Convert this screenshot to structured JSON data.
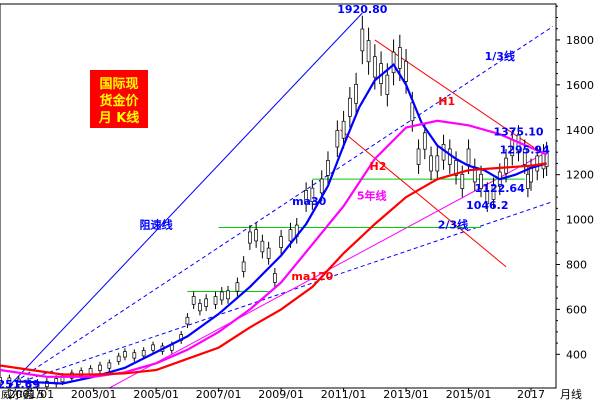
{
  "chart_data": {
    "type": "line",
    "title_box": {
      "line1": "国际现",
      "line2": "货金价",
      "line3": "月 K线",
      "bg_color": "#ff0000",
      "text_color": "#ffff00"
    },
    "x_ticks": [
      "2001/01",
      "2003/01",
      "2005/01",
      "2007/01",
      "2009/01",
      "2011/01",
      "2013/01",
      "2015/01",
      "2017"
    ],
    "x_unit": "月线",
    "bottom_left": "威尔鑫 5",
    "y_ticks": [
      400,
      600,
      800,
      1000,
      1200,
      1400,
      1600,
      1800
    ],
    "ylim": [
      250,
      1960
    ],
    "xlim": [
      2000.0,
      2017.8
    ],
    "candles": [
      [
        2000.0,
        285
      ],
      [
        2000.3,
        283
      ],
      [
        2000.6,
        278
      ],
      [
        2000.9,
        270
      ],
      [
        2001.2,
        263
      ],
      [
        2001.5,
        268
      ],
      [
        2001.8,
        280
      ],
      [
        2002.0,
        290
      ],
      [
        2002.3,
        305
      ],
      [
        2002.6,
        315
      ],
      [
        2002.9,
        325
      ],
      [
        2003.2,
        340
      ],
      [
        2003.5,
        350
      ],
      [
        2003.8,
        380
      ],
      [
        2004.0,
        400
      ],
      [
        2004.3,
        395
      ],
      [
        2004.6,
        405
      ],
      [
        2004.9,
        430
      ],
      [
        2005.2,
        425
      ],
      [
        2005.5,
        430
      ],
      [
        2005.8,
        475
      ],
      [
        2006.0,
        550
      ],
      [
        2006.2,
        640
      ],
      [
        2006.4,
        610
      ],
      [
        2006.6,
        630
      ],
      [
        2006.9,
        640
      ],
      [
        2007.1,
        660
      ],
      [
        2007.3,
        665
      ],
      [
        2007.6,
        700
      ],
      [
        2007.8,
        790
      ],
      [
        2008.0,
        920
      ],
      [
        2008.2,
        930
      ],
      [
        2008.4,
        880
      ],
      [
        2008.6,
        850
      ],
      [
        2008.8,
        740
      ],
      [
        2009.0,
        900
      ],
      [
        2009.3,
        930
      ],
      [
        2009.5,
        950
      ],
      [
        2009.8,
        1100
      ],
      [
        2010.0,
        1110
      ],
      [
        2010.3,
        1150
      ],
      [
        2010.5,
        1230
      ],
      [
        2010.8,
        1360
      ],
      [
        2011.0,
        1400
      ],
      [
        2011.2,
        1500
      ],
      [
        2011.4,
        1560
      ],
      [
        2011.6,
        1800
      ],
      [
        2011.8,
        1750
      ],
      [
        2012.0,
        1680
      ],
      [
        2012.2,
        1650
      ],
      [
        2012.4,
        1600
      ],
      [
        2012.6,
        1700
      ],
      [
        2012.8,
        1720
      ],
      [
        2013.0,
        1660
      ],
      [
        2013.2,
        1480
      ],
      [
        2013.4,
        1280
      ],
      [
        2013.6,
        1350
      ],
      [
        2013.8,
        1250
      ],
      [
        2014.0,
        1250
      ],
      [
        2014.2,
        1300
      ],
      [
        2014.4,
        1280
      ],
      [
        2014.6,
        1230
      ],
      [
        2014.8,
        1170
      ],
      [
        2015.0,
        1280
      ],
      [
        2015.2,
        1200
      ],
      [
        2015.4,
        1170
      ],
      [
        2015.6,
        1100
      ],
      [
        2015.8,
        1120
      ],
      [
        2016.0,
        1180
      ],
      [
        2016.2,
        1240
      ],
      [
        2016.4,
        1320
      ],
      [
        2016.6,
        1340
      ],
      [
        2016.8,
        1280
      ],
      [
        2016.9,
        1170
      ],
      [
        2017.0,
        1200
      ],
      [
        2017.2,
        1250
      ],
      [
        2017.4,
        1260
      ],
      [
        2017.5,
        1270
      ]
    ],
    "series": [
      {
        "name": "ma30",
        "color": "#0000ff",
        "points": [
          [
            2000.5,
            280
          ],
          [
            2002.0,
            270
          ],
          [
            2003.0,
            300
          ],
          [
            2004.0,
            340
          ],
          [
            2005.0,
            410
          ],
          [
            2006.0,
            480
          ],
          [
            2007.0,
            580
          ],
          [
            2008.0,
            700
          ],
          [
            2009.0,
            840
          ],
          [
            2009.8,
            980
          ],
          [
            2010.5,
            1150
          ],
          [
            2011.0,
            1330
          ],
          [
            2011.5,
            1500
          ],
          [
            2012.0,
            1620
          ],
          [
            2012.6,
            1690
          ],
          [
            2013.0,
            1600
          ],
          [
            2013.5,
            1430
          ],
          [
            2014.0,
            1330
          ],
          [
            2014.6,
            1270
          ],
          [
            2015.0,
            1240
          ],
          [
            2015.5,
            1220
          ],
          [
            2016.0,
            1180
          ],
          [
            2016.5,
            1200
          ],
          [
            2017.0,
            1230
          ],
          [
            2017.5,
            1250
          ]
        ]
      },
      {
        "name": "5年线",
        "color": "#ff00ff",
        "points": [
          [
            2000.0,
            330
          ],
          [
            2001.5,
            300
          ],
          [
            2003.0,
            300
          ],
          [
            2004.0,
            320
          ],
          [
            2005.0,
            360
          ],
          [
            2006.0,
            420
          ],
          [
            2007.0,
            500
          ],
          [
            2008.0,
            600
          ],
          [
            2009.0,
            720
          ],
          [
            2010.0,
            890
          ],
          [
            2011.0,
            1060
          ],
          [
            2012.0,
            1270
          ],
          [
            2013.0,
            1410
          ],
          [
            2014.0,
            1440
          ],
          [
            2015.0,
            1420
          ],
          [
            2016.0,
            1380
          ],
          [
            2017.0,
            1320
          ],
          [
            2017.5,
            1290
          ]
        ]
      },
      {
        "name": "ma120",
        "color": "#ff0000",
        "points": [
          [
            2000.0,
            350
          ],
          [
            2001.0,
            330
          ],
          [
            2002.0,
            310
          ],
          [
            2003.0,
            310
          ],
          [
            2004.0,
            315
          ],
          [
            2005.0,
            330
          ],
          [
            2006.0,
            380
          ],
          [
            2007.0,
            430
          ],
          [
            2008.0,
            520
          ],
          [
            2009.0,
            600
          ],
          [
            2010.0,
            700
          ],
          [
            2011.0,
            850
          ],
          [
            2012.0,
            980
          ],
          [
            2013.0,
            1100
          ],
          [
            2014.0,
            1180
          ],
          [
            2015.0,
            1220
          ],
          [
            2016.0,
            1230
          ],
          [
            2017.0,
            1240
          ],
          [
            2017.5,
            1250
          ]
        ]
      }
    ],
    "lines": [
      {
        "name": "阻速线",
        "color": "#0000ff",
        "dash": false,
        "points": [
          [
            2000.3,
            260
          ],
          [
            2011.6,
            1920
          ]
        ]
      },
      {
        "name": "1/3线",
        "color": "#0000ff",
        "dash": true,
        "points": [
          [
            2000.3,
            260
          ],
          [
            2017.7,
            1860
          ]
        ]
      },
      {
        "name": "2/3线",
        "color": "#0000ff",
        "dash": true,
        "points": [
          [
            2000.3,
            260
          ],
          [
            2017.7,
            1080
          ]
        ]
      },
      {
        "name": "H1",
        "color": "#ff0000",
        "dash": false,
        "points": [
          [
            2012.0,
            1800
          ],
          [
            2017.1,
            1320
          ]
        ]
      },
      {
        "name": "H2",
        "color": "#ff0000",
        "dash": false,
        "points": [
          [
            2010.9,
            1400
          ],
          [
            2016.2,
            790
          ]
        ]
      },
      {
        "name": "",
        "color": "#ff00ff",
        "dash": false,
        "points": [
          [
            2003.5,
            250
          ],
          [
            2017.5,
            1300
          ]
        ]
      },
      {
        "name": "",
        "color": "#00cc00",
        "dash": false,
        "points": [
          [
            2010.0,
            1180
          ],
          [
            2016.8,
            1180
          ]
        ]
      },
      {
        "name": "",
        "color": "#00cc00",
        "dash": false,
        "points": [
          [
            2007.0,
            965
          ],
          [
            2015.4,
            965
          ]
        ]
      },
      {
        "name": "",
        "color": "#00cc00",
        "dash": false,
        "points": [
          [
            2006.0,
            680
          ],
          [
            2008.6,
            680
          ]
        ]
      }
    ],
    "annotations": [
      {
        "text": "1920.80",
        "color": "#0000ff",
        "x": 2011.6,
        "y": 1920
      },
      {
        "text": "1/3线",
        "color": "#0000ff",
        "x": 2016.0,
        "y": 1710
      },
      {
        "text": "H1",
        "color": "#ff0000",
        "x": 2014.3,
        "y": 1510
      },
      {
        "text": "1375.10",
        "color": "#0000ff",
        "x": 2016.6,
        "y": 1375
      },
      {
        "text": "1295.94",
        "color": "#0000ff",
        "x": 2017.6,
        "y": 1295
      },
      {
        "text": "H2",
        "color": "#ff0000",
        "x": 2012.1,
        "y": 1220
      },
      {
        "text": "ma30",
        "color": "#0000ff",
        "x": 2009.9,
        "y": 1065
      },
      {
        "text": "5年线",
        "color": "#ff00ff",
        "x": 2011.9,
        "y": 1090
      },
      {
        "text": "1122.64",
        "color": "#0000ff",
        "x": 2016.8,
        "y": 1122
      },
      {
        "text": "1046.2",
        "color": "#0000ff",
        "x": 2015.6,
        "y": 1046
      },
      {
        "text": "阻速线",
        "color": "#0000ff",
        "x": 2005.0,
        "y": 960
      },
      {
        "text": "2/3线",
        "color": "#0000ff",
        "x": 2014.5,
        "y": 960
      },
      {
        "text": "ma120",
        "color": "#ff0000",
        "x": 2010.0,
        "y": 730
      },
      {
        "text": "251.69",
        "color": "#0000ff",
        "x": 2000.6,
        "y": 250
      }
    ]
  }
}
